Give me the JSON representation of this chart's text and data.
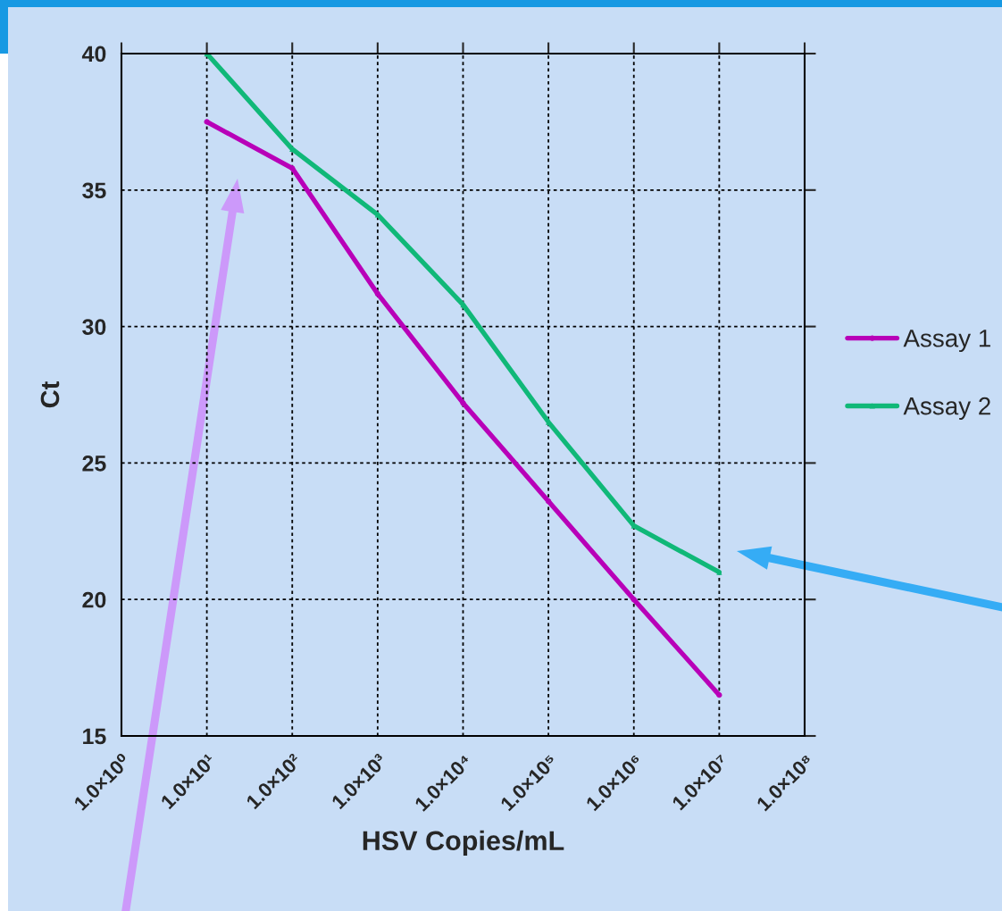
{
  "chart_data": {
    "type": "line",
    "xlabel": "HSV Copies/mL",
    "ylabel": "Ct",
    "x": [
      10,
      100,
      1000,
      10000,
      100000,
      1000000,
      10000000
    ],
    "series": [
      {
        "name": "Assay 1",
        "color": "#b800b8",
        "marker": "circle",
        "values": [
          37.5,
          35.8,
          31.2,
          27.2,
          23.6,
          20.0,
          16.5
        ]
      },
      {
        "name": "Assay 2",
        "color": "#10b878",
        "marker": "triangle",
        "values": [
          40,
          36.5,
          34.1,
          30.8,
          26.5,
          22.7,
          21.0
        ]
      }
    ],
    "log": "x",
    "xlim": [
      1,
      100000000
    ],
    "xticks": [
      {
        "value": 1,
        "label": "1.0×10⁰"
      },
      {
        "value": 10,
        "label": "1.0×10¹"
      },
      {
        "value": 100,
        "label": "1.0×10²"
      },
      {
        "value": 1000,
        "label": "1.0×10³"
      },
      {
        "value": 10000,
        "label": "1.0×10⁴"
      },
      {
        "value": 100000,
        "label": "1.0×10⁵"
      },
      {
        "value": 1000000,
        "label": "1.0×10⁶"
      },
      {
        "value": 10000000,
        "label": "1.0×10⁷"
      },
      {
        "value": 100000000,
        "label": "1.0×10⁸"
      }
    ],
    "ylim": [
      15,
      40
    ],
    "yticks": [
      15,
      20,
      25,
      30,
      35,
      40
    ],
    "grid": true,
    "legend": "right"
  }
}
